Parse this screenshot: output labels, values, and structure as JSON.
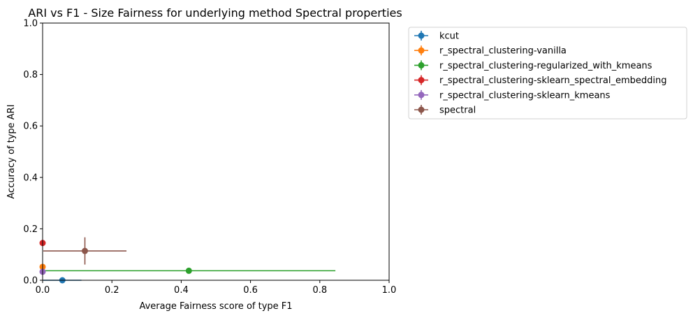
{
  "chart_data": {
    "type": "scatter",
    "title": "ARI vs F1 - Size Fairness for underlying method Spectral properties",
    "xlabel": "Average Fairness score of type F1",
    "ylabel": "Accuracy of type ARI",
    "xlim": [
      0,
      1
    ],
    "ylim": [
      0,
      1
    ],
    "x_ticks": [
      "0.0",
      "0.2",
      "0.4",
      "0.6",
      "0.8",
      "1.0"
    ],
    "y_ticks": [
      "0.0",
      "0.2",
      "0.4",
      "0.6",
      "0.8",
      "1.0"
    ],
    "legend_position": "outside-top-right",
    "grid": false,
    "series": [
      {
        "name": "kcut",
        "color": "#1f77b4",
        "x": 0.057,
        "y": 0.0,
        "xerr": 0.055,
        "yerr": 0.0
      },
      {
        "name": "r_spectral_clustering-vanilla",
        "color": "#ff7f0e",
        "x": 0.0,
        "y": 0.052,
        "xerr": 0.0,
        "yerr": 0.0
      },
      {
        "name": "r_spectral_clustering-regularized_with_kmeans",
        "color": "#2ca02c",
        "x": 0.422,
        "y": 0.037,
        "xerr": 0.423,
        "yerr": 0.0
      },
      {
        "name": "r_spectral_clustering-sklearn_spectral_embedding",
        "color": "#d62728",
        "x": 0.0,
        "y": 0.145,
        "xerr": 0.0,
        "yerr": 0.0
      },
      {
        "name": "r_spectral_clustering-sklearn_kmeans",
        "color": "#9467bd",
        "x": 0.0,
        "y": 0.033,
        "xerr": 0.0,
        "yerr": 0.0
      },
      {
        "name": "spectral",
        "color": "#8c564b",
        "x": 0.122,
        "y": 0.114,
        "xerr": 0.12,
        "yerr": 0.053
      }
    ]
  }
}
